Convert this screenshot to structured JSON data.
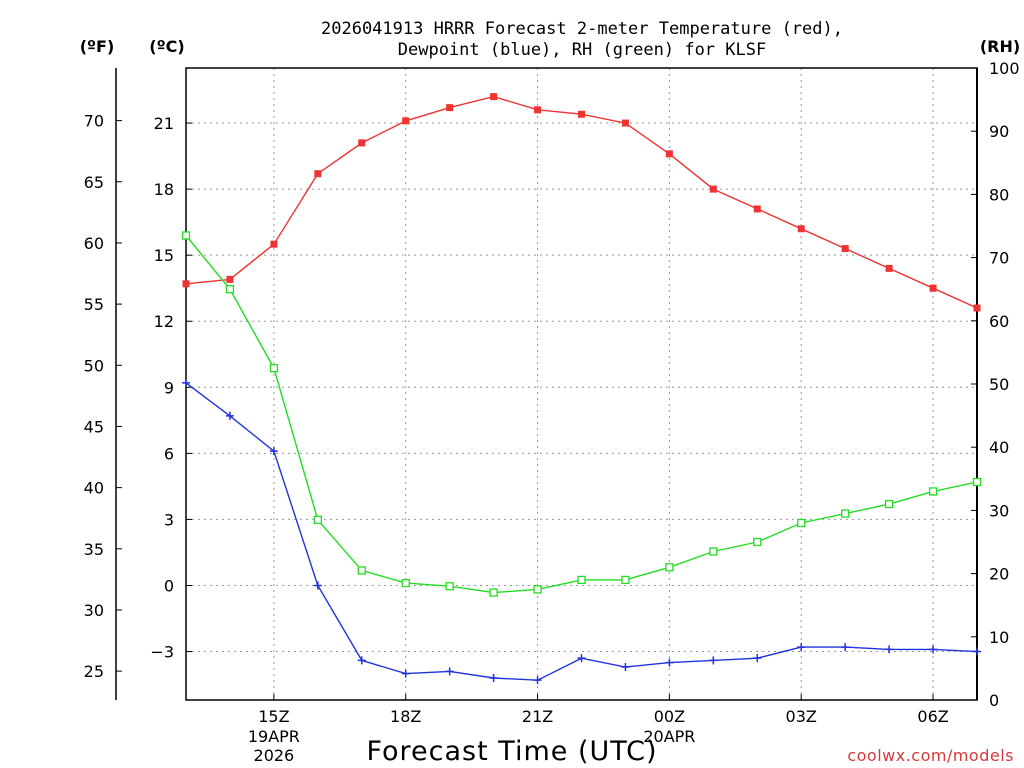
{
  "chart_data": {
    "type": "line",
    "title_line1": "2026041913 HRRR Forecast 2-meter Temperature (red),",
    "title_line2": "Dewpoint (blue), RH (green) for KLSF",
    "units": {
      "fahrenheit": "(ºF)",
      "celsius": "(ºC)",
      "rh": "(RH)"
    },
    "xlabel": "Forecast Time (UTC)",
    "credit": "coolwx.com/models",
    "x_hours": [
      13,
      14,
      15,
      16,
      17,
      18,
      19,
      20,
      21,
      22,
      23,
      24,
      25,
      26,
      27,
      28,
      29,
      30,
      31
    ],
    "xlim": [
      13,
      31
    ],
    "x_ticks": [
      {
        "hour": 15,
        "label": "15Z",
        "sub1": "19APR",
        "sub2": "2026"
      },
      {
        "hour": 18,
        "label": "18Z",
        "sub1": "",
        "sub2": ""
      },
      {
        "hour": 21,
        "label": "21Z",
        "sub1": "",
        "sub2": ""
      },
      {
        "hour": 24,
        "label": "00Z",
        "sub1": "20APR",
        "sub2": ""
      },
      {
        "hour": 27,
        "label": "03Z",
        "sub1": "",
        "sub2": ""
      },
      {
        "hour": 30,
        "label": "06Z",
        "sub1": "",
        "sub2": ""
      }
    ],
    "celsius_axis": {
      "ylim": [
        -5.2,
        23.5
      ],
      "ticks": [
        "-3",
        "0",
        "3",
        "6",
        "9",
        "12",
        "15",
        "18",
        "21"
      ]
    },
    "fahrenheit_axis": {
      "ticks": [
        "25",
        "30",
        "35",
        "40",
        "45",
        "50",
        "55",
        "60",
        "65",
        "70"
      ]
    },
    "rh_axis": {
      "ylim": [
        0,
        100
      ],
      "ticks": [
        "0",
        "10",
        "20",
        "30",
        "40",
        "50",
        "60",
        "70",
        "80",
        "90",
        "100"
      ]
    },
    "series": [
      {
        "name": "Temperature",
        "axis": "celsius",
        "color": "#ee3333",
        "marker": "filled-square",
        "values": [
          13.7,
          13.9,
          15.5,
          18.7,
          20.1,
          21.1,
          21.7,
          22.2,
          21.6,
          21.4,
          21.0,
          19.6,
          18.0,
          17.1,
          16.2,
          15.3,
          14.4,
          13.5,
          12.6
        ]
      },
      {
        "name": "Dewpoint",
        "axis": "celsius",
        "color": "#2233dd",
        "marker": "plus",
        "values": [
          9.2,
          7.7,
          6.1,
          0.0,
          -3.4,
          -4.0,
          -3.9,
          -4.2,
          -4.3,
          -3.3,
          -3.7,
          -3.5,
          -3.4,
          -3.3,
          -2.8,
          -2.8,
          -2.9,
          -2.9,
          -3.0
        ]
      },
      {
        "name": "RH",
        "axis": "rh",
        "color": "#22dd22",
        "marker": "open-square",
        "values": [
          73.5,
          65.0,
          52.5,
          28.5,
          20.5,
          18.5,
          18.0,
          17.0,
          17.5,
          19.0,
          19.0,
          21.0,
          23.5,
          25.0,
          28.0,
          29.5,
          31.0,
          33.0,
          34.5
        ]
      }
    ]
  }
}
